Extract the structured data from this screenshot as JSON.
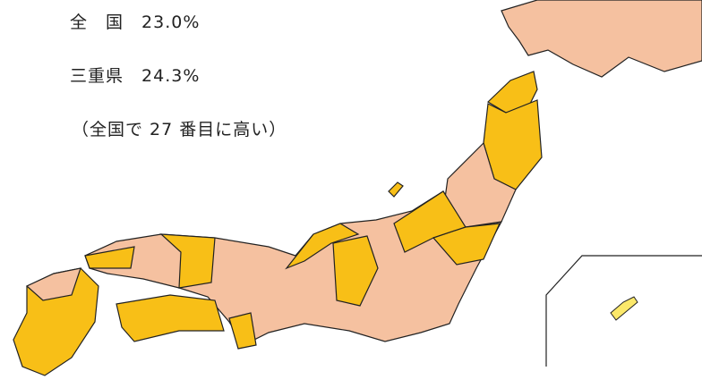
{
  "summary": {
    "national": {
      "label": "全　国",
      "value": "23.0%"
    },
    "prefecture": {
      "label": "三重県",
      "value": "24.3%"
    },
    "rank_note": "（全国で 27 番目に高い）"
  }
}
